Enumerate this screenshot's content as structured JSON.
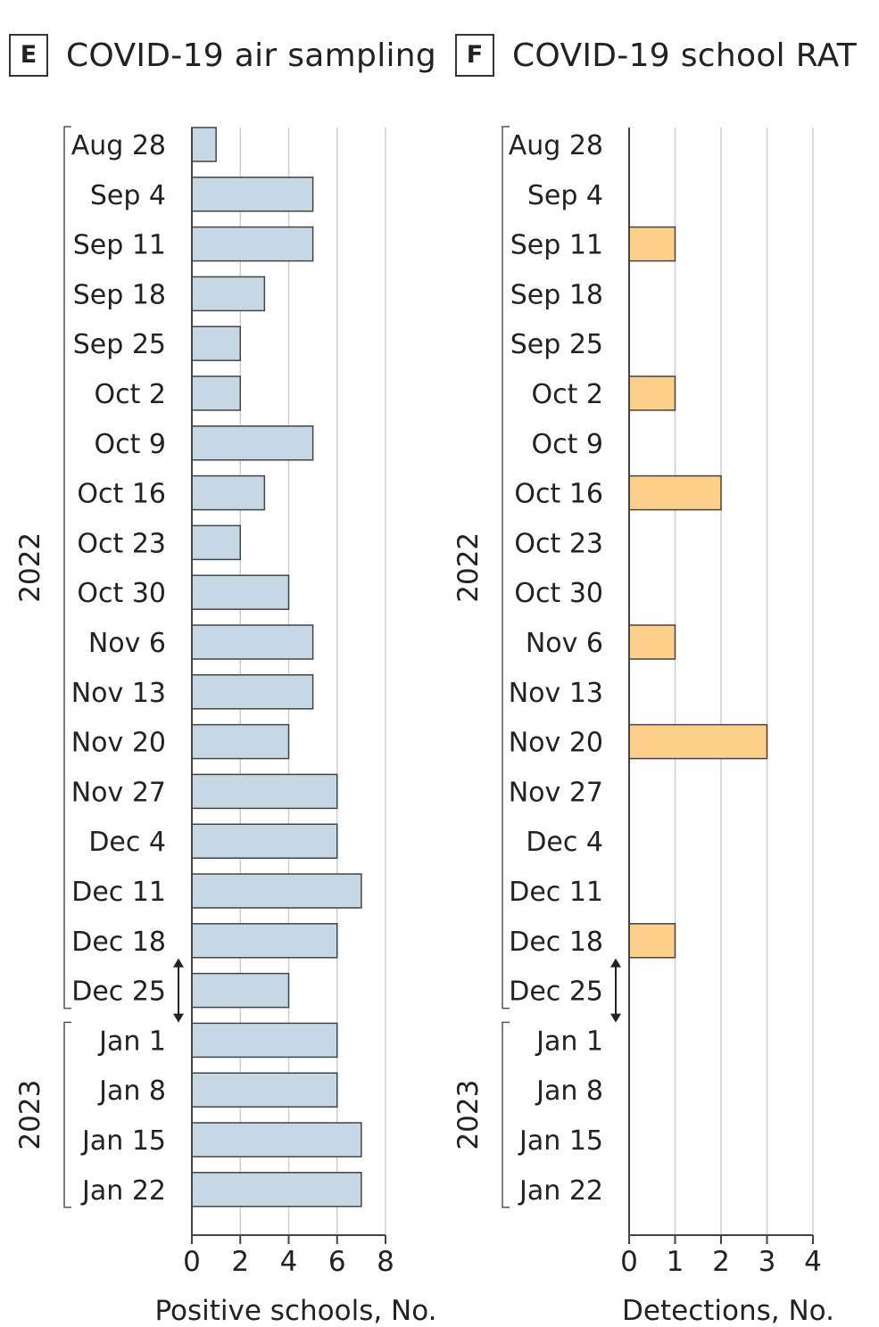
{
  "chart_data": [
    {
      "panel": "E",
      "title": "COVID-19 air sampling",
      "type": "bar",
      "orientation": "horizontal",
      "categories": [
        "Aug 28",
        "Sep 4",
        "Sep 11",
        "Sep 18",
        "Sep 25",
        "Oct 2",
        "Oct 9",
        "Oct 16",
        "Oct 23",
        "Oct 30",
        "Nov 6",
        "Nov 13",
        "Nov 20",
        "Nov 27",
        "Dec 4",
        "Dec 11",
        "Dec 18",
        "Dec 25",
        "Jan 1",
        "Jan 8",
        "Jan 15",
        "Jan 22"
      ],
      "values": [
        1,
        5,
        5,
        3,
        2,
        2,
        5,
        3,
        2,
        4,
        5,
        5,
        4,
        6,
        6,
        7,
        6,
        4,
        6,
        6,
        7,
        7
      ],
      "xlabel": "Positive schools, No.",
      "xlim": [
        0,
        8
      ],
      "xticks": [
        0,
        2,
        4,
        6,
        8
      ],
      "years": [
        {
          "label": "2022",
          "from": "Aug 28",
          "to": "Dec 25"
        },
        {
          "label": "2023",
          "from": "Jan 1",
          "to": "Jan 22"
        }
      ],
      "bar_color": "#c5d8e3",
      "grid": true
    },
    {
      "panel": "F",
      "title": "COVID-19 school RAT",
      "type": "bar",
      "orientation": "horizontal",
      "categories": [
        "Aug 28",
        "Sep 4",
        "Sep 11",
        "Sep 18",
        "Sep 25",
        "Oct 2",
        "Oct 9",
        "Oct 16",
        "Oct 23",
        "Oct 30",
        "Nov 6",
        "Nov 13",
        "Nov 20",
        "Nov 27",
        "Dec 4",
        "Dec 11",
        "Dec 18",
        "Dec 25",
        "Jan 1",
        "Jan 8",
        "Jan 15",
        "Jan 22"
      ],
      "values": [
        0,
        0,
        1,
        0,
        0,
        1,
        0,
        2,
        0,
        0,
        1,
        0,
        3,
        0,
        0,
        0,
        1,
        0,
        0,
        0,
        0,
        0
      ],
      "xlabel": "Detections, No.",
      "xlim": [
        0,
        4
      ],
      "xticks": [
        0,
        1,
        2,
        3,
        4
      ],
      "years": [
        {
          "label": "2022",
          "from": "Aug 28",
          "to": "Dec 25"
        },
        {
          "label": "2023",
          "from": "Jan 1",
          "to": "Jan 22"
        }
      ],
      "bar_color": "#fccf8a",
      "grid": true
    }
  ]
}
